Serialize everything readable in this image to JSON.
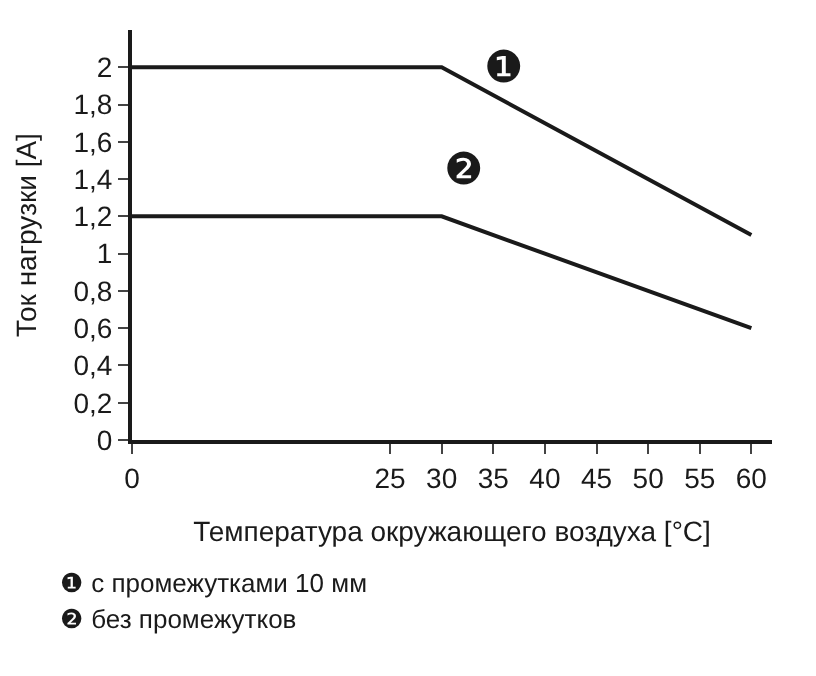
{
  "chart_data": {
    "type": "line",
    "xlabel": "Температура окружающего воздуха [°C]",
    "ylabel": "Ток нагрузки [A]",
    "series": [
      {
        "x": [
          0,
          30,
          60
        ],
        "values": [
          2,
          2,
          1.1
        ],
        "color": "#1a1a1a"
      },
      {
        "x": [
          0,
          30,
          60
        ],
        "values": [
          1.2,
          1.2,
          0.6
        ],
        "color": "#1a1a1a"
      }
    ],
    "xlim": [
      0,
      62
    ],
    "xticks": [
      0,
      25,
      30,
      35,
      40,
      45,
      50,
      55,
      60
    ],
    "ylim": [
      0,
      2.2
    ],
    "yticks": [
      0,
      {
        "value": 0.2,
        "label": "0,2"
      },
      {
        "value": 0.4,
        "label": "0,4"
      },
      {
        "value": 0.6,
        "label": "0,6"
      },
      {
        "value": 0.8,
        "label": "0,8"
      },
      1,
      {
        "value": 1.2,
        "label": "1,2"
      },
      {
        "value": 1.4,
        "label": "1,4"
      },
      {
        "value": 1.6,
        "label": "1,6"
      },
      {
        "value": 1.8,
        "label": "1,8"
      },
      2
    ],
    "legend": false,
    "marker": "none",
    "line_style": "solid",
    "annotations": [
      "❶",
      "❷",
      "❶ с промежутками 10 мм",
      "❷ без промежутков"
    ]
  }
}
